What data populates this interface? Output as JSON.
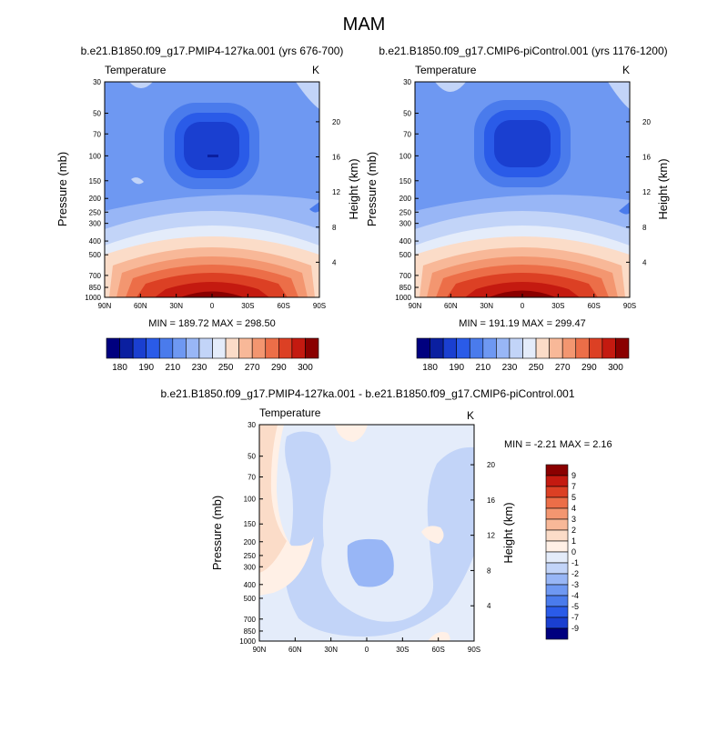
{
  "figure_title": "MAM",
  "chart_data": [
    {
      "type": "contour",
      "title": "b.e21.B1850.f09_g17.PMIP4-127ka.001 (yrs 676-700)",
      "left_label": "Temperature",
      "right_label": "K",
      "xlabel": "",
      "ylabel": "Pressure (mb)",
      "y2label": "Height (km)",
      "x_ticks": [
        "90N",
        "60N",
        "30N",
        "0",
        "30S",
        "60S",
        "90S"
      ],
      "y_ticks": [
        "30",
        "50",
        "70",
        "100",
        "150",
        "200",
        "250",
        "300",
        "400",
        "500",
        "700",
        "850",
        "1000"
      ],
      "y_tick_values": [
        30,
        50,
        70,
        100,
        150,
        200,
        250,
        300,
        400,
        500,
        700,
        850,
        1000
      ],
      "y2_ticks": [
        "20",
        "16",
        "12",
        "8",
        "4"
      ],
      "y2_tick_values": [
        20,
        16,
        12,
        8,
        4
      ],
      "ylim": [
        1000,
        30
      ],
      "y_scale": "log",
      "stats_text": "MIN = 189.72  MAX = 298.50",
      "min": 189.72,
      "max": 298.5,
      "colorbar_labels": [
        "180",
        "190",
        "210",
        "230",
        "250",
        "270",
        "290",
        "300"
      ]
    },
    {
      "type": "contour",
      "title": "b.e21.B1850.f09_g17.CMIP6-piControl.001 (yrs 1176-1200)",
      "left_label": "Temperature",
      "right_label": "K",
      "xlabel": "",
      "ylabel": "Pressure (mb)",
      "y2label": "Height (km)",
      "x_ticks": [
        "90N",
        "60N",
        "30N",
        "0",
        "30S",
        "60S",
        "90S"
      ],
      "y_ticks": [
        "30",
        "50",
        "70",
        "100",
        "150",
        "200",
        "250",
        "300",
        "400",
        "500",
        "700",
        "850",
        "1000"
      ],
      "y_tick_values": [
        30,
        50,
        70,
        100,
        150,
        200,
        250,
        300,
        400,
        500,
        700,
        850,
        1000
      ],
      "y2_ticks": [
        "20",
        "16",
        "12",
        "8",
        "4"
      ],
      "y2_tick_values": [
        20,
        16,
        12,
        8,
        4
      ],
      "ylim": [
        1000,
        30
      ],
      "y_scale": "log",
      "stats_text": "MIN = 191.19  MAX = 299.47",
      "min": 191.19,
      "max": 299.47,
      "colorbar_labels": [
        "180",
        "190",
        "210",
        "230",
        "250",
        "270",
        "290",
        "300"
      ]
    },
    {
      "type": "contour",
      "title": "b.e21.B1850.f09_g17.PMIP4-127ka.001 - b.e21.B1850.f09_g17.CMIP6-piControl.001",
      "left_label": "Temperature",
      "right_label": "K",
      "xlabel": "",
      "ylabel": "Pressure (mb)",
      "y2label": "Height (km)",
      "x_ticks": [
        "90N",
        "60N",
        "30N",
        "0",
        "30S",
        "60S",
        "90S"
      ],
      "y_ticks": [
        "30",
        "50",
        "70",
        "100",
        "150",
        "200",
        "250",
        "300",
        "400",
        "500",
        "700",
        "850",
        "1000"
      ],
      "y_tick_values": [
        30,
        50,
        70,
        100,
        150,
        200,
        250,
        300,
        400,
        500,
        700,
        850,
        1000
      ],
      "y2_ticks": [
        "20",
        "16",
        "12",
        "8",
        "4"
      ],
      "y2_tick_values": [
        20,
        16,
        12,
        8,
        4
      ],
      "ylim": [
        1000,
        30
      ],
      "y_scale": "log",
      "stats_text": "MIN =  -2.21  MAX =  2.16",
      "min": -2.21,
      "max": 2.16,
      "colorbar_labels": [
        "9",
        "7",
        "5",
        "4",
        "3",
        "2",
        "1",
        "0",
        "-1",
        "-2",
        "-3",
        "-4",
        "-5",
        "-7",
        "-9"
      ]
    }
  ],
  "colors": {
    "temperature_scale": [
      "#00007f",
      "#0a1fa0",
      "#1a3fd0",
      "#2a5be8",
      "#4a7bec",
      "#6e98f2",
      "#98b6f6",
      "#c2d4f8",
      "#e4ecfa",
      "#fbdcc8",
      "#f8b898",
      "#f39670",
      "#ec6e48",
      "#dc4024",
      "#c41a10",
      "#8a0000"
    ],
    "difference_scale": [
      "#8a0000",
      "#c41a10",
      "#dc4024",
      "#ec6e48",
      "#f39670",
      "#f8b898",
      "#fbdcc8",
      "#fff0e6",
      "#e4ecfa",
      "#c2d4f8",
      "#98b6f6",
      "#6e98f2",
      "#4a7bec",
      "#2a5be8",
      "#1a3fd0",
      "#00007f"
    ]
  }
}
